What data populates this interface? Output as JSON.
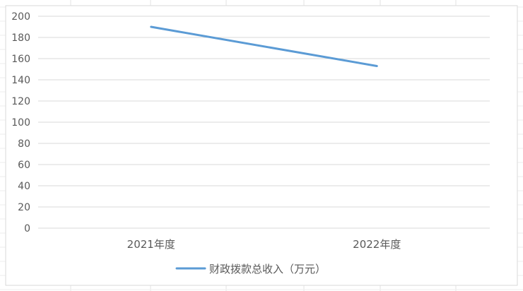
{
  "chart_data": {
    "type": "line",
    "categories": [
      "2021年度",
      "2022年度"
    ],
    "series": [
      {
        "name": "财政拨款总收入（万元）",
        "values": [
          190,
          153
        ],
        "color": "#5b9bd5"
      }
    ],
    "ylim": [
      0,
      200
    ],
    "yticks": [
      0,
      20,
      40,
      60,
      80,
      100,
      120,
      140,
      160,
      180,
      200
    ],
    "grid": true,
    "legend_position": "bottom"
  }
}
